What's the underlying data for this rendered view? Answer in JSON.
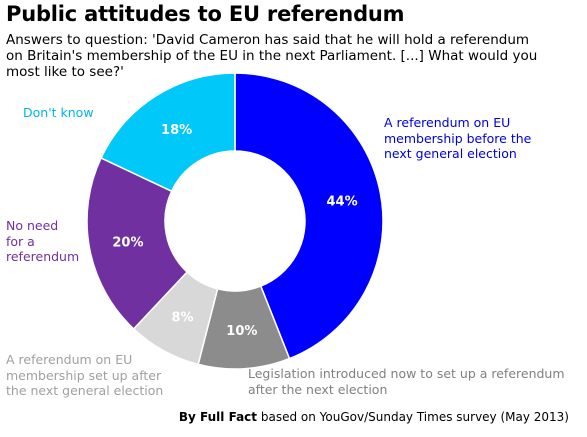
{
  "title": "Public attitudes to EU referendum",
  "subtitle": [
    "Answers to question: 'David Cameron has said that he will hold a referendum",
    "on Britain's membership of the EU in the next Parliament. [...] What would you",
    "most like to see?'"
  ],
  "footer": {
    "source_bold": "By Full Fact",
    "source_rest": "based on YouGov/Sunday Times survey (May 2013)"
  },
  "chart_data": {
    "type": "pie",
    "style": "donut",
    "start": "12 o'clock",
    "direction": "clockwise",
    "slices": [
      {
        "name": "A referendum on EU membership before the next general election",
        "value": 44,
        "label": "44%",
        "color": "#0000ff"
      },
      {
        "name": "Legislation introduced now to set up a referendum after the next election",
        "value": 10,
        "label": "10%",
        "color": "#8c8c8c"
      },
      {
        "name": "A referendum on EU membership set up after the next general election",
        "value": 8,
        "label": "8%",
        "color": "#d8d8d8"
      },
      {
        "name": "No need for a referendum",
        "value": 20,
        "label": "20%",
        "color": "#7030a0"
      },
      {
        "name": "Don't know",
        "value": 18,
        "label": "18%",
        "color": "#00c8f8"
      }
    ],
    "legend_lines": {
      "before": [
        "A referendum on EU",
        "membership before the",
        "next general election"
      ],
      "legislation": [
        "Legislation introduced now to set up a referendum",
        "after the next election"
      ],
      "after": [
        "A referendum on EU",
        "membership set up after",
        "the next general election"
      ],
      "noneed": [
        "No need",
        "for a",
        "referendum"
      ],
      "dontknow": [
        "Don't know"
      ]
    }
  }
}
